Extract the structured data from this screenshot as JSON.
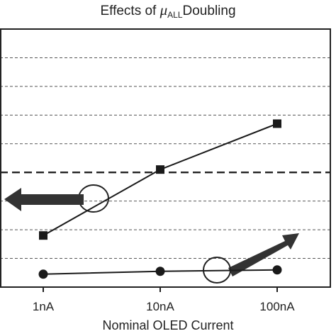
{
  "title": {
    "prefix": "Effects of ",
    "symbol": "μ",
    "subscript": "ALL",
    "suffix": "Doubling"
  },
  "chart_data": {
    "type": "line",
    "title": "Effects of μALL Doubling",
    "xlabel": "Nominal OLED Current",
    "ylabel": "",
    "categories": [
      "1nA",
      "10nA",
      "100nA"
    ],
    "ylim": [
      0,
      9
    ],
    "grid": "horizontal dashed",
    "reference_line": 4,
    "series": [
      {
        "marker": "square",
        "values": [
          1.8,
          4.1,
          5.7
        ]
      },
      {
        "marker": "circle",
        "values": [
          0.45,
          0.55,
          0.6
        ]
      }
    ],
    "annotations": [
      {
        "type": "circle-arrow",
        "series_index": 0,
        "points_to": "left axis"
      },
      {
        "type": "circle-arrow",
        "series_index": 1,
        "points_to": "right axis"
      }
    ]
  },
  "colors": {
    "axis": "#222222",
    "series": "#1a1a1a",
    "arrow": "#333333",
    "grid": "#555555"
  }
}
